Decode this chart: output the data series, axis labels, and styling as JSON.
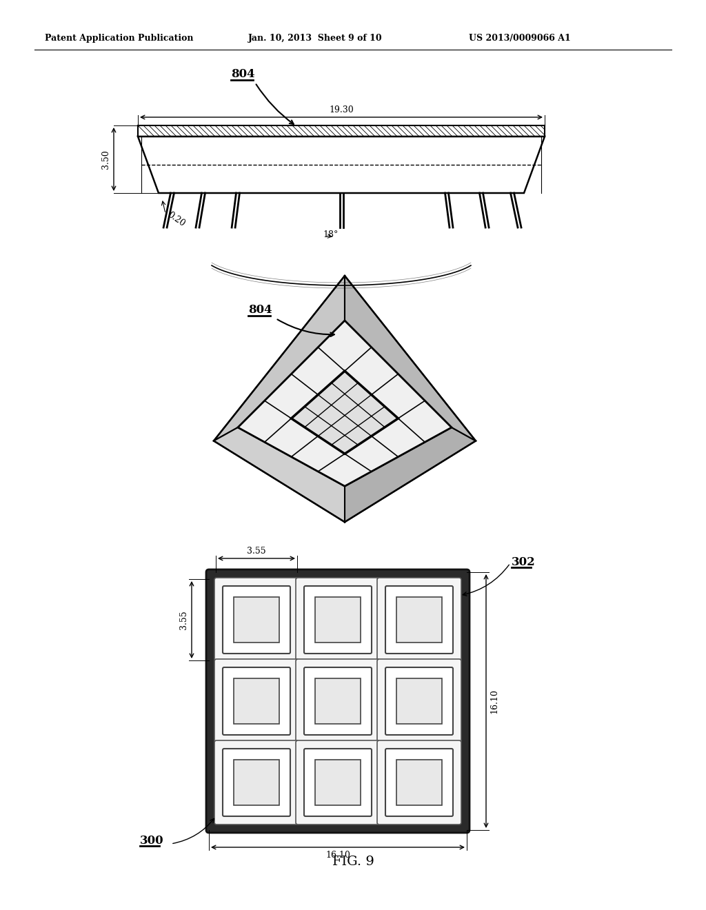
{
  "header_left": "Patent Application Publication",
  "header_mid": "Jan. 10, 2013  Sheet 9 of 10",
  "header_right": "US 2013/0009066 A1",
  "fig_label": "FIG. 9",
  "background_color": "#ffffff",
  "line_color": "#000000",
  "fig1_label": "804",
  "fig2_label": "804",
  "fig3_label1": "302",
  "fig3_label2": "300",
  "dim_19_30": "19.30",
  "dim_3_50": "3.50",
  "dim_0_20": "0.20",
  "dim_18deg": "18°",
  "dim_3_55_h": "3.55",
  "dim_3_55_v": "3.55",
  "dim_16_10_h": "16.10",
  "dim_16_10_v": "16.10"
}
